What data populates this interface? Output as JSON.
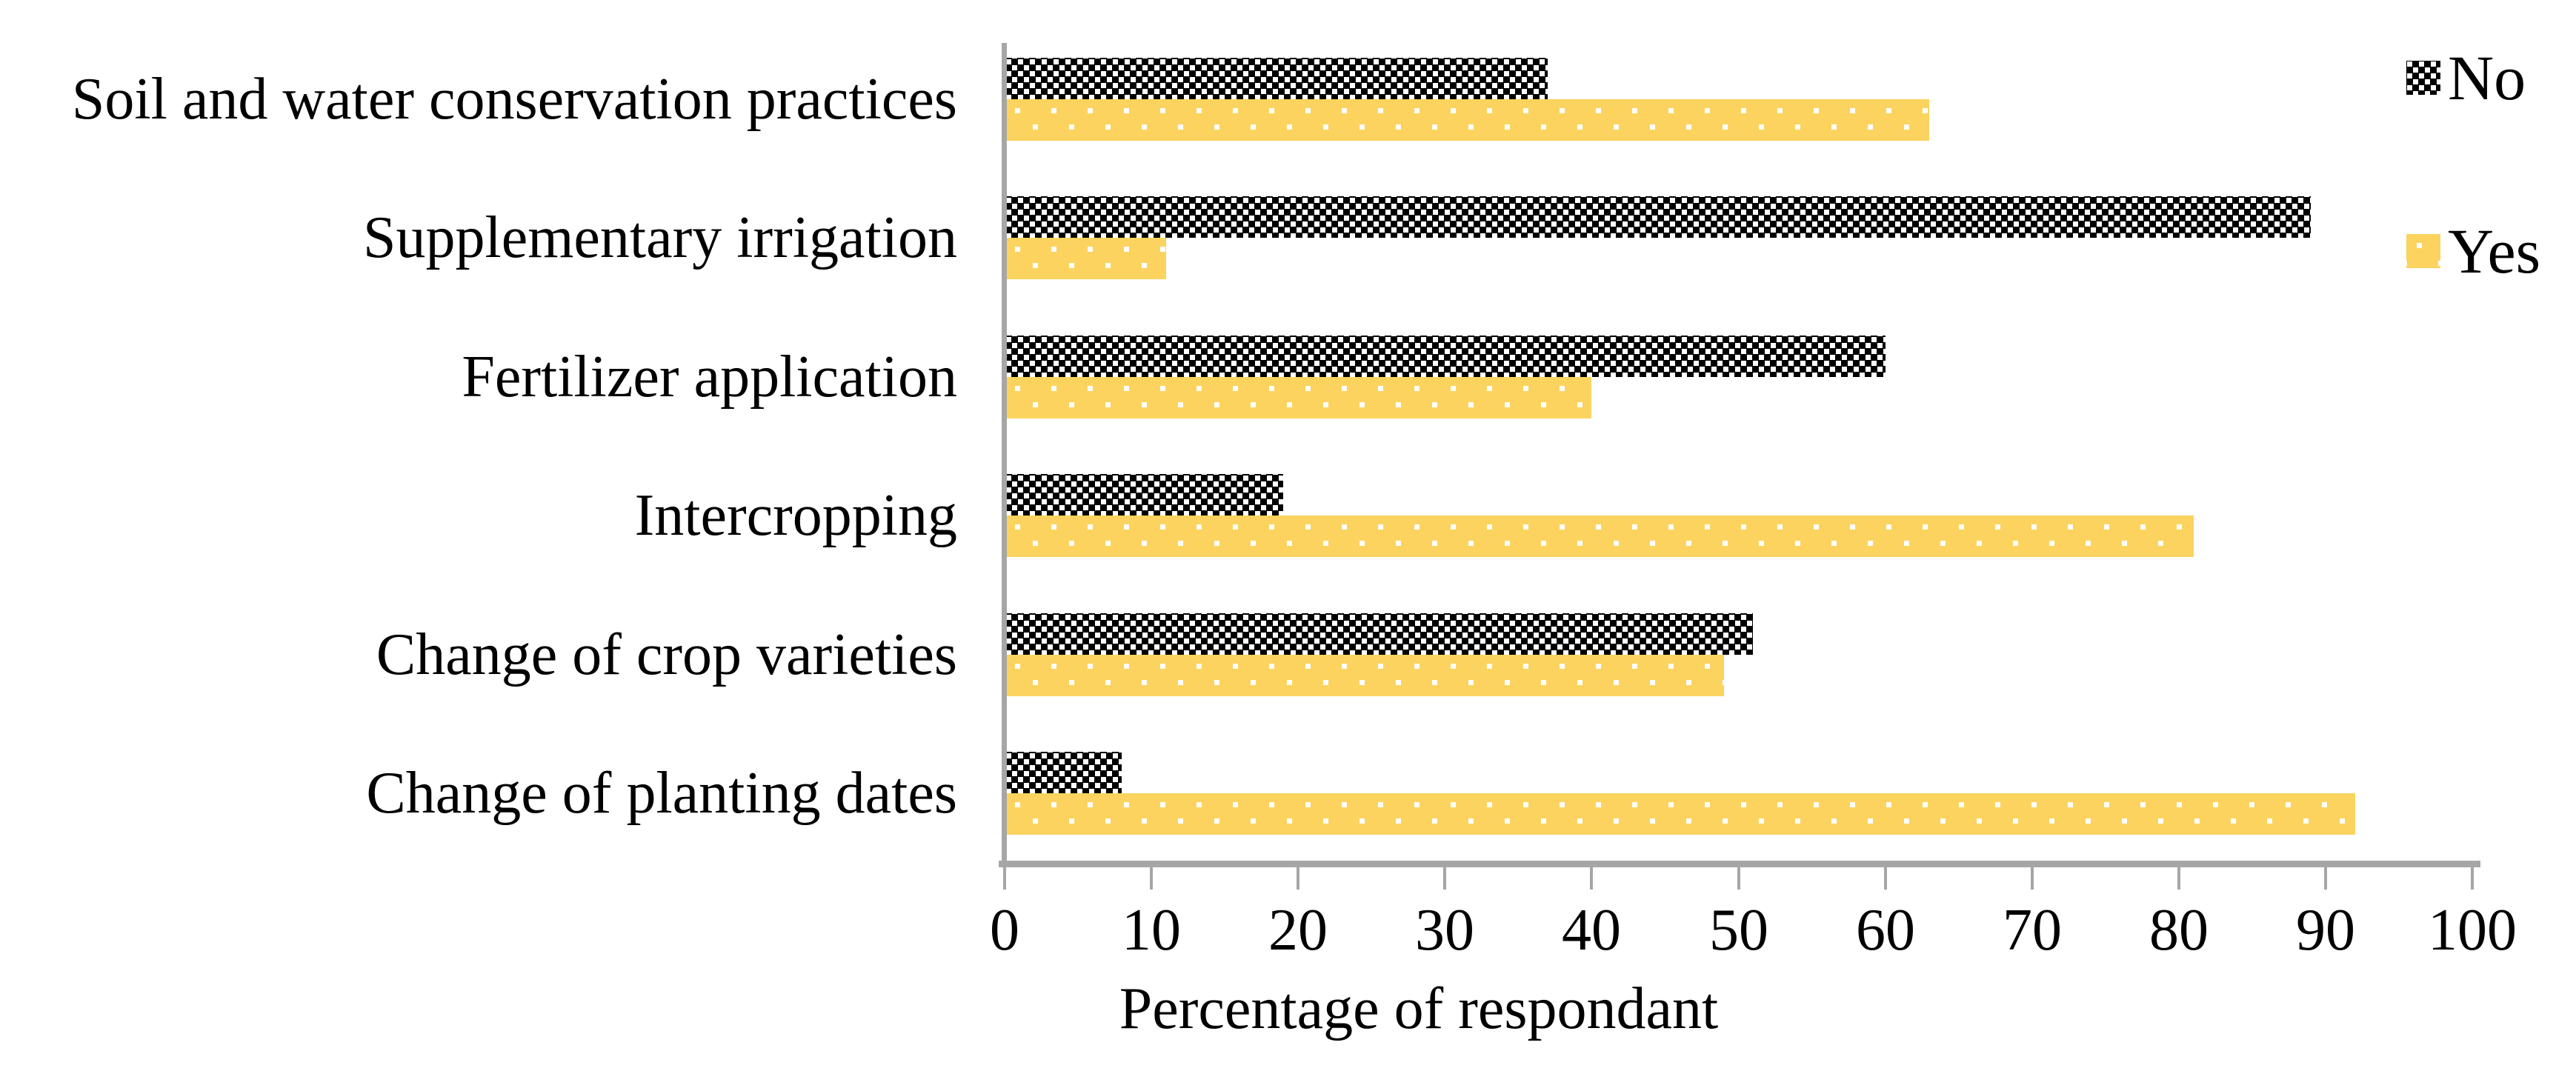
{
  "chart_data": {
    "type": "bar",
    "orientation": "horizontal",
    "title": "",
    "xlabel": "Percentage of respondant",
    "ylabel": "",
    "xlim": [
      0,
      100
    ],
    "xticks": [
      0,
      10,
      20,
      30,
      40,
      50,
      60,
      70,
      80,
      90,
      100
    ],
    "grid": false,
    "categories": [
      "Soil and water conservation practices",
      "Supplementary irrigation",
      "Fertilizer application",
      "Intercropping",
      "Change of crop varieties",
      "Change of planting dates"
    ],
    "series": [
      {
        "name": "No",
        "values": [
          37,
          89,
          60,
          19,
          51,
          8
        ],
        "color": "#000000",
        "pattern": "offset grid of small white squares on black"
      },
      {
        "name": "Yes",
        "values": [
          63,
          11,
          40,
          81,
          49,
          92
        ],
        "color": "#fbd35e",
        "pattern": "sparse offset white square dots on yellow"
      }
    ],
    "legend": {
      "position": "top-right",
      "items": [
        "No",
        "Yes"
      ]
    },
    "axis_color": "#a6a6a6",
    "text_color": "#000000"
  }
}
